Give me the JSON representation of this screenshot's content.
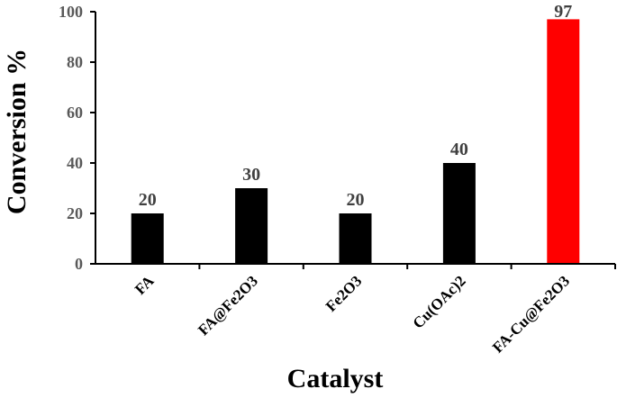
{
  "chart_data": {
    "type": "bar",
    "title": "",
    "xlabel": "Catalyst",
    "ylabel": "Conversion %",
    "categories": [
      "FA",
      "FA@Fe2O3",
      "Fe2O3",
      "Cu(OAc)2",
      "FA-Cu@Fe2O3"
    ],
    "values": [
      20,
      30,
      20,
      40,
      97
    ],
    "data_labels": [
      "20",
      "30",
      "20",
      "40",
      "97"
    ],
    "bar_colors": [
      "#000000",
      "#000000",
      "#000000",
      "#000000",
      "#ff0000"
    ],
    "ylim": [
      0,
      100
    ],
    "yticks": [
      0,
      20,
      40,
      60,
      80,
      100
    ],
    "grid": false,
    "legend": false
  }
}
